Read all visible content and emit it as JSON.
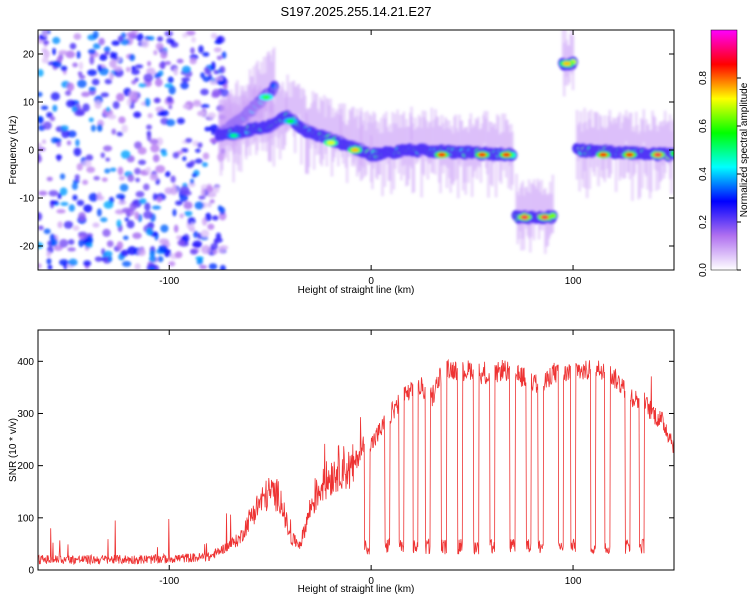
{
  "title": "S197.2025.255.14.21.E27",
  "chart_data": [
    {
      "type": "heatmap",
      "xlabel": "Height of straight line (km)",
      "ylabel": "Frequency (Hz)",
      "xlim": [
        -165,
        150
      ],
      "ylim": [
        -25,
        25
      ],
      "xticks": [
        -100,
        0,
        100
      ],
      "yticks": [
        -20,
        -10,
        0,
        10,
        20
      ],
      "xtick_labels": [
        "-100",
        "0",
        "100"
      ],
      "ytick_labels": [
        "-20",
        "-10",
        "0",
        "10",
        "20"
      ],
      "colorbar": {
        "label": "Normalized spectral amplitude",
        "range": [
          0.0,
          1.0
        ],
        "ticks": [
          0.0,
          0.2,
          0.4,
          0.6,
          0.8
        ],
        "tick_labels": [
          "0.0",
          "0.2",
          "0.4",
          "0.6",
          "0.8"
        ],
        "colors": [
          "#ffffff",
          "#b070f0",
          "#0000ff",
          "#00ffff",
          "#00ff00",
          "#ffff00",
          "#ff0000",
          "#ff00ff"
        ]
      },
      "features": [
        {
          "name": "broadband noise",
          "x_range": [
            -165,
            -72
          ],
          "freq_range": [
            -25,
            25
          ],
          "amplitude": 0.15
        },
        {
          "name": "rising branch",
          "points": [
            [
              -75,
              3
            ],
            [
              -60,
              8
            ],
            [
              -48,
              13
            ]
          ],
          "amplitude": 0.5
        },
        {
          "name": "main line",
          "points": [
            [
              -75,
              3
            ],
            [
              -50,
              5
            ],
            [
              -42,
              7
            ],
            [
              -32,
              4
            ],
            [
              -15,
              1.5
            ],
            [
              -5,
              0
            ],
            [
              0,
              -1
            ],
            [
              20,
              0
            ],
            [
              70,
              -1
            ]
          ],
          "amplitude": 0.75
        },
        {
          "name": "negative segment",
          "points": [
            [
              72,
              -14
            ],
            [
              90,
              -14
            ]
          ],
          "amplitude": 0.9
        },
        {
          "name": "upper segment",
          "points": [
            [
              95,
              18
            ],
            [
              100,
              18
            ]
          ],
          "amplitude": 0.8
        },
        {
          "name": "late line",
          "points": [
            [
              102,
              0
            ],
            [
              150,
              -1
            ]
          ],
          "amplitude": 0.85
        }
      ],
      "peaks": [
        [
          -68,
          3,
          0.5
        ],
        [
          -52,
          11,
          0.6
        ],
        [
          -40,
          6,
          0.55
        ],
        [
          -20,
          1.5,
          0.7
        ],
        [
          -8,
          0,
          0.75
        ],
        [
          35,
          -1,
          0.85
        ],
        [
          55,
          -1,
          0.85
        ],
        [
          67,
          -1,
          0.85
        ],
        [
          76,
          -14,
          0.9
        ],
        [
          86,
          -14,
          0.9
        ],
        [
          97,
          18,
          0.75
        ],
        [
          115,
          -1,
          0.85
        ],
        [
          128,
          -1,
          0.85
        ],
        [
          142,
          -1,
          0.9
        ]
      ]
    },
    {
      "type": "line",
      "xlabel": "Height of straight line (km)",
      "ylabel": "SNR (10 * v/v)",
      "xlim": [
        -165,
        150
      ],
      "ylim": [
        0,
        460
      ],
      "xticks": [
        -100,
        0,
        100
      ],
      "yticks": [
        0,
        100,
        200,
        300,
        400
      ],
      "xtick_labels": [
        "-100",
        "0",
        "100"
      ],
      "ytick_labels": [
        "0",
        "100",
        "200",
        "300",
        "400"
      ],
      "color": "#ee3333",
      "series": [
        {
          "name": "SNR",
          "x": [
            -165,
            -140,
            -110,
            -80,
            -65,
            -60,
            -55,
            -50,
            -45,
            -40,
            -35,
            -30,
            -25,
            -20,
            -15,
            -10,
            -5,
            0,
            5,
            10,
            15,
            20,
            25,
            30,
            35,
            40,
            45,
            50,
            55,
            60,
            65,
            70,
            75,
            80,
            85,
            90,
            95,
            100,
            105,
            110,
            115,
            120,
            125,
            130,
            135,
            140,
            145,
            150
          ],
          "values": [
            20,
            20,
            20,
            25,
            60,
            100,
            130,
            150,
            140,
            60,
            50,
            120,
            160,
            180,
            200,
            190,
            230,
            240,
            270,
            300,
            330,
            340,
            350,
            330,
            380,
            385,
            380,
            385,
            375,
            370,
            385,
            375,
            370,
            360,
            350,
            380,
            370,
            390,
            380,
            385,
            385,
            370,
            350,
            330,
            320,
            300,
            280,
            240
          ]
        }
      ],
      "dropouts": {
        "x": [
          -2,
          8,
          15,
          22,
          28,
          36,
          44,
          52,
          60,
          70,
          78,
          84,
          94,
          100,
          110,
          117,
          127,
          134
        ],
        "value": 45
      }
    }
  ]
}
